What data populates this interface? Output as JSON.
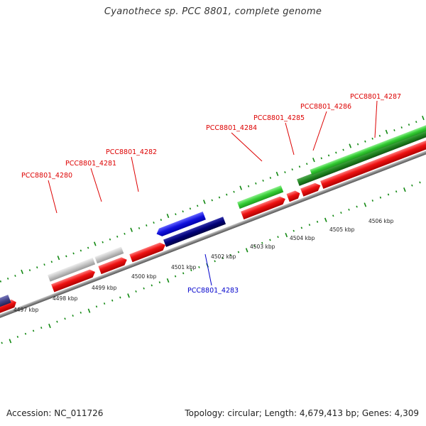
{
  "title": "Cyanothece sp. PCC 8801, complete genome",
  "footer": {
    "accession": "Accession: NC_011726",
    "stats": "Topology: circular; Length: 4,679,413 bp; Genes: 4,309"
  },
  "colors": {
    "forward_cds": "#ee1111",
    "forward_rna_light": "#c0c0c0",
    "forward_green": "#33cc33",
    "forward_green_dark": "#228822",
    "reverse_cds": "#1111dd",
    "reverse_cds_dark": "#000077",
    "reverse_purple": "#444488",
    "backbone": "#888888",
    "tick": "#118811",
    "label_forward": "#dd0000",
    "label_reverse": "#0000cc"
  },
  "scale": {
    "kbp_labels": [
      "4497 kbp",
      "4498 kbp",
      "4499 kbp",
      "4500 kbp",
      "4501 kbp",
      "4502 kbp",
      "4503 kbp",
      "4504 kbp",
      "4505 kbp",
      "4506 kbp"
    ]
  },
  "genes": [
    {
      "id": "PCC8801_4280",
      "label": "PCC8801_4280",
      "strand": "+"
    },
    {
      "id": "PCC8801_4281",
      "label": "PCC8801_4281",
      "strand": "+"
    },
    {
      "id": "PCC8801_4282",
      "label": "PCC8801_4282",
      "strand": "+"
    },
    {
      "id": "PCC8801_4283",
      "label": "PCC8801_4283",
      "strand": "-"
    },
    {
      "id": "PCC8801_4284",
      "label": "PCC8801_4284",
      "strand": "+"
    },
    {
      "id": "PCC8801_4285",
      "label": "PCC8801_4285",
      "strand": "+"
    },
    {
      "id": "PCC8801_4286",
      "label": "PCC8801_4286",
      "strand": "+"
    },
    {
      "id": "PCC8801_4287",
      "label": "PCC8801_4287",
      "strand": "+"
    }
  ]
}
